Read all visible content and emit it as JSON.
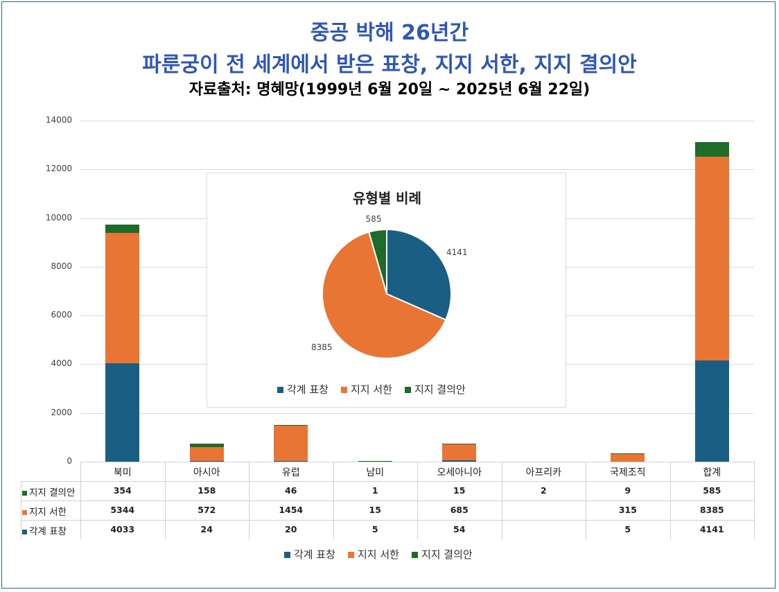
{
  "titles": {
    "line1": "중공 박해 26년간",
    "line2": "파룬궁이 전 세계에서 받은 표창, 지지 서한, 지지 결의안",
    "source": "자료출처: 명혜망(1999년 6월 20일 ~ 2025년 6월 22일)"
  },
  "colors": {
    "award": "#1b5e84",
    "letter": "#e97534",
    "resolution": "#1e6b2a"
  },
  "chart_data": [
    {
      "type": "bar",
      "stacked": true,
      "categories": [
        "북미",
        "아시아",
        "유럽",
        "남미",
        "오세아니아",
        "아프리카",
        "국제조직",
        "합계"
      ],
      "series": [
        {
          "name": "각계 표창",
          "values": [
            4033,
            24,
            20,
            5,
            54,
            null,
            5,
            4141
          ],
          "labels": [
            "4033",
            "24",
            "20",
            "5",
            "54",
            "",
            "5",
            "4141"
          ]
        },
        {
          "name": "지지 서한",
          "values": [
            5344,
            572,
            1454,
            15,
            685,
            null,
            315,
            8385
          ],
          "labels": [
            "5344",
            "572",
            "1454",
            "15",
            "685",
            "",
            "315",
            "8385"
          ]
        },
        {
          "name": "지지 결의안",
          "values": [
            354,
            158,
            46,
            1,
            15,
            2,
            9,
            585
          ],
          "labels": [
            "354",
            "158",
            "46",
            "1",
            "15",
            "2",
            "9",
            "585"
          ]
        }
      ],
      "table_order": [
        2,
        1,
        0
      ],
      "ylim": [
        0,
        14000
      ],
      "yticks": [
        "0",
        "2000",
        "4000",
        "6000",
        "8000",
        "10000",
        "12000",
        "14000"
      ],
      "grid": true,
      "legend": "bottom",
      "data_table": true
    },
    {
      "type": "pie",
      "title": "유형별 비례",
      "labels": [
        "각계 표창",
        "지지 서한",
        "지지 결의안"
      ],
      "values": [
        4141,
        8385,
        585
      ],
      "value_labels": [
        "4141",
        "8385",
        "585"
      ],
      "legend": "bottom"
    }
  ]
}
